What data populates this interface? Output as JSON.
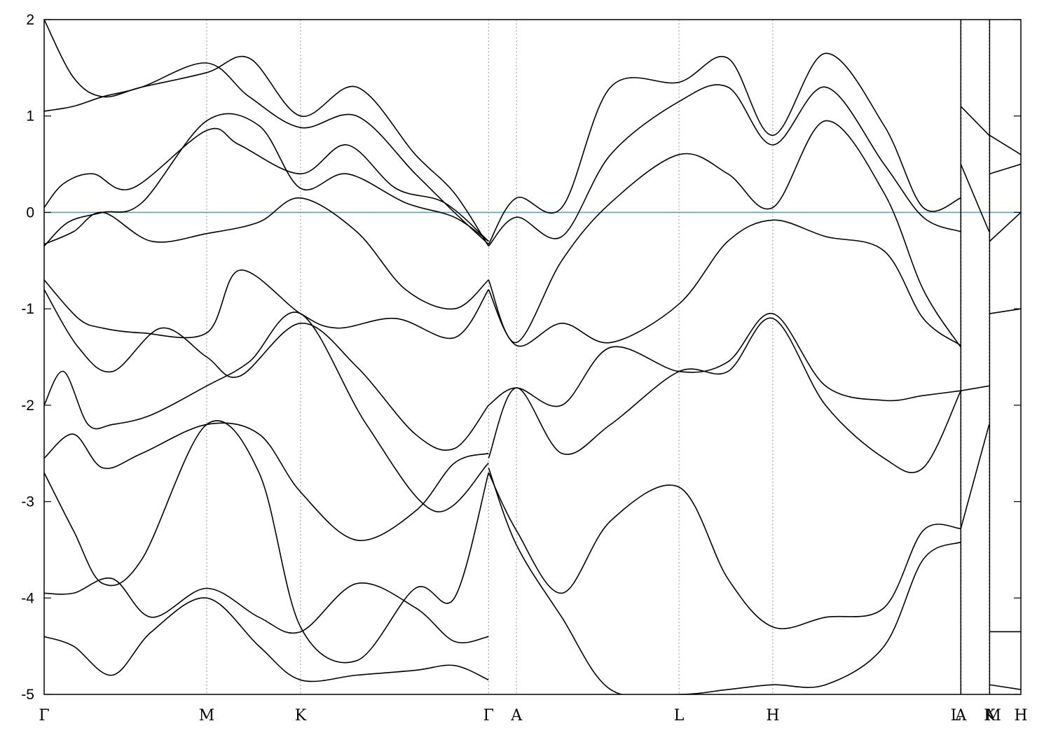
{
  "chart_data": {
    "type": "line",
    "title": "",
    "xlabel": "",
    "ylabel": "",
    "ylim": [
      -5,
      2
    ],
    "yticks": [
      -5,
      -4,
      -3,
      -2,
      -1,
      0,
      1,
      2
    ],
    "xlim": [
      0,
      1.0
    ],
    "kpoints": [
      {
        "label": "Γ",
        "x": 0.0
      },
      {
        "label": "M",
        "x": 0.1664
      },
      {
        "label": "K",
        "x": 0.2625
      },
      {
        "label": "Γ",
        "x": 0.455
      },
      {
        "label": "A",
        "x": 0.4836
      },
      {
        "label": "L",
        "x": 0.65
      },
      {
        "label": "H",
        "x": 0.746
      },
      {
        "label": "A",
        "x": 0.9385
      },
      {
        "label": "L",
        "x": 0.939
      },
      {
        "label": "M",
        "x": 0.9675
      },
      {
        "label": "K",
        "x": 0.968
      },
      {
        "label": "H",
        "x": 1.0
      }
    ],
    "section_breaks": [
      0.9385,
      0.968
    ],
    "fermi_level": 0,
    "grid": "vertical dashed lines at k-points",
    "colors": {
      "bands": "#000000",
      "fermi": "#4aa8c8",
      "kpoint_lines": "#999999"
    },
    "series": [
      {
        "x": [
          0,
          0.03,
          0.06,
          0.1,
          0.1664,
          0.21,
          0.2625,
          0.32,
          0.38,
          0.42,
          0.455
        ],
        "y": [
          2.0,
          1.4,
          1.2,
          1.3,
          1.45,
          1.6,
          1.0,
          1.3,
          0.6,
          0.2,
          -0.35
        ]
      },
      {
        "x": [
          0,
          0.03,
          0.06,
          0.1,
          0.1664,
          0.21,
          0.2625,
          0.32,
          0.38,
          0.42,
          0.455
        ],
        "y": [
          1.05,
          1.1,
          1.2,
          1.3,
          1.55,
          1.2,
          0.88,
          1.0,
          0.4,
          0.0,
          -0.33
        ]
      },
      {
        "x": [
          0,
          0.02,
          0.05,
          0.09,
          0.1664,
          0.2,
          0.2625,
          0.31,
          0.36,
          0.41,
          0.455
        ],
        "y": [
          0.05,
          0.3,
          0.4,
          0.25,
          0.85,
          0.7,
          0.4,
          0.7,
          0.25,
          0.1,
          -0.3
        ]
      },
      {
        "x": [
          0,
          0.025,
          0.06,
          0.1,
          0.1664,
          0.22,
          0.2625,
          0.31,
          0.37,
          0.42,
          0.455
        ],
        "y": [
          -0.35,
          -0.1,
          0.0,
          0.1,
          0.95,
          0.9,
          0.25,
          0.4,
          0.1,
          -0.05,
          -0.3
        ]
      },
      {
        "x": [
          0,
          0.03,
          0.06,
          0.11,
          0.1664,
          0.22,
          0.2625,
          0.32,
          0.37,
          0.42,
          0.455
        ],
        "y": [
          -0.33,
          -0.2,
          0.0,
          -0.3,
          -0.22,
          -0.1,
          0.15,
          -0.2,
          -0.8,
          -1.0,
          -0.7
        ]
      },
      {
        "x": [
          0,
          0.035,
          0.06,
          0.1,
          0.1664,
          0.2,
          0.2625,
          0.3,
          0.36,
          0.42,
          0.455
        ],
        "y": [
          -0.7,
          -1.1,
          -1.2,
          -1.25,
          -1.25,
          -0.6,
          -1.05,
          -1.2,
          -1.1,
          -1.3,
          -0.8
        ]
      },
      {
        "x": [
          0,
          0.035,
          0.07,
          0.12,
          0.1664,
          0.2,
          0.2625,
          0.32,
          0.38,
          0.42,
          0.455
        ],
        "y": [
          -0.8,
          -1.4,
          -1.65,
          -1.2,
          -1.5,
          -1.7,
          -1.15,
          -1.6,
          -2.3,
          -2.45,
          -2.0
        ]
      },
      {
        "x": [
          0,
          0.02,
          0.045,
          0.07,
          0.11,
          0.1664,
          0.21,
          0.2625,
          0.33,
          0.4,
          0.455
        ],
        "y": [
          -2.0,
          -1.65,
          -2.2,
          -2.2,
          -2.1,
          -1.8,
          -1.55,
          -1.05,
          -2.2,
          -3.1,
          -2.6
        ]
      },
      {
        "x": [
          0,
          0.03,
          0.06,
          0.1,
          0.1664,
          0.22,
          0.2625,
          0.32,
          0.38,
          0.42,
          0.455
        ],
        "y": [
          -2.55,
          -2.3,
          -2.65,
          -2.5,
          -2.2,
          -2.3,
          -2.9,
          -3.4,
          -3.1,
          -2.6,
          -2.5
        ]
      },
      {
        "x": [
          0,
          0.03,
          0.06,
          0.1,
          0.1664,
          0.22,
          0.2625,
          0.32,
          0.38,
          0.42,
          0.455
        ],
        "y": [
          -2.7,
          -3.3,
          -3.85,
          -3.6,
          -2.2,
          -2.7,
          -4.3,
          -4.65,
          -3.9,
          -4.0,
          -2.7
        ]
      },
      {
        "x": [
          0,
          0.03,
          0.07,
          0.11,
          0.1664,
          0.22,
          0.2625,
          0.32,
          0.38,
          0.42,
          0.455
        ],
        "y": [
          -3.95,
          -3.95,
          -3.8,
          -4.2,
          -3.9,
          -4.2,
          -4.35,
          -3.85,
          -4.1,
          -4.45,
          -4.4
        ]
      },
      {
        "x": [
          0,
          0.03,
          0.07,
          0.11,
          0.1664,
          0.22,
          0.2625,
          0.32,
          0.38,
          0.42,
          0.455
        ],
        "y": [
          -4.4,
          -4.5,
          -4.8,
          -4.35,
          -4.0,
          -4.5,
          -4.85,
          -4.8,
          -4.75,
          -4.7,
          -4.85
        ]
      },
      {
        "x": [
          0.455,
          0.4836,
          0.53,
          0.58,
          0.65,
          0.7,
          0.746,
          0.8,
          0.86,
          0.9,
          0.9385
        ],
        "y": [
          -0.33,
          0.15,
          0.05,
          1.3,
          1.35,
          1.6,
          0.8,
          1.65,
          0.9,
          0.05,
          0.15
        ]
      },
      {
        "x": [
          0.455,
          0.4836,
          0.53,
          0.58,
          0.65,
          0.7,
          0.746,
          0.8,
          0.86,
          0.9,
          0.9385
        ],
        "y": [
          -0.35,
          -0.05,
          -0.25,
          0.6,
          1.15,
          1.3,
          0.7,
          1.3,
          0.5,
          -0.05,
          -0.2
        ]
      },
      {
        "x": [
          0.455,
          0.4836,
          0.53,
          0.58,
          0.65,
          0.7,
          0.746,
          0.8,
          0.86,
          0.9,
          0.9385
        ],
        "y": [
          -0.8,
          -1.38,
          -1.15,
          -1.35,
          -0.95,
          -0.3,
          -0.08,
          -0.25,
          -0.4,
          -1.1,
          -1.38
        ]
      },
      {
        "x": [
          0.455,
          0.4836,
          0.53,
          0.58,
          0.65,
          0.7,
          0.746,
          0.8,
          0.86,
          0.9,
          0.9385
        ],
        "y": [
          -0.7,
          -1.35,
          -0.5,
          0.1,
          0.6,
          0.4,
          0.05,
          0.95,
          0.2,
          -0.8,
          -1.4
        ]
      },
      {
        "x": [
          0.455,
          0.4836,
          0.53,
          0.58,
          0.65,
          0.7,
          0.746,
          0.8,
          0.86,
          0.9,
          0.9385
        ],
        "y": [
          -2.0,
          -1.82,
          -2.0,
          -1.4,
          -1.65,
          -1.55,
          -1.05,
          -1.8,
          -1.95,
          -1.9,
          -1.85
        ]
      },
      {
        "x": [
          0.455,
          0.4836,
          0.53,
          0.58,
          0.65,
          0.7,
          0.746,
          0.8,
          0.86,
          0.9,
          0.9385
        ],
        "y": [
          -2.55,
          -1.82,
          -2.5,
          -2.2,
          -1.65,
          -1.65,
          -1.1,
          -2.0,
          -2.55,
          -2.65,
          -1.85
        ]
      },
      {
        "x": [
          0.455,
          0.4836,
          0.53,
          0.58,
          0.65,
          0.7,
          0.746,
          0.8,
          0.86,
          0.9,
          0.9385
        ],
        "y": [
          -2.7,
          -3.3,
          -3.95,
          -3.2,
          -2.85,
          -3.8,
          -4.3,
          -4.2,
          -4.1,
          -3.3,
          -3.28
        ]
      },
      {
        "x": [
          0.455,
          0.4836,
          0.53,
          0.58,
          0.65,
          0.7,
          0.746,
          0.8,
          0.86,
          0.9,
          0.9385
        ],
        "y": [
          -2.65,
          -3.45,
          -4.2,
          -4.95,
          -5.0,
          -4.95,
          -4.9,
          -4.9,
          -4.5,
          -3.6,
          -3.42
        ]
      },
      {
        "x": [
          0.9385,
          0.9675
        ],
        "y": [
          -1.85,
          -1.8
        ]
      },
      {
        "x": [
          0.9385,
          0.9675
        ],
        "y": [
          -3.28,
          -2.2
        ]
      },
      {
        "x": [
          0.9385,
          0.9675
        ],
        "y": [
          1.1,
          0.8
        ]
      },
      {
        "x": [
          0.9385,
          0.9675
        ],
        "y": [
          0.5,
          -0.2
        ]
      },
      {
        "x": [
          0.968,
          1.0
        ],
        "y": [
          0.8,
          0.6
        ]
      },
      {
        "x": [
          0.968,
          1.0
        ],
        "y": [
          0.4,
          0.5
        ]
      },
      {
        "x": [
          0.968,
          1.0
        ],
        "y": [
          -0.3,
          0.0
        ]
      },
      {
        "x": [
          0.968,
          1.0
        ],
        "y": [
          -1.05,
          -1.0
        ]
      },
      {
        "x": [
          0.968,
          1.0
        ],
        "y": [
          -4.35,
          -4.35
        ]
      },
      {
        "x": [
          0.968,
          1.0
        ],
        "y": [
          -4.9,
          -4.95
        ]
      }
    ]
  }
}
